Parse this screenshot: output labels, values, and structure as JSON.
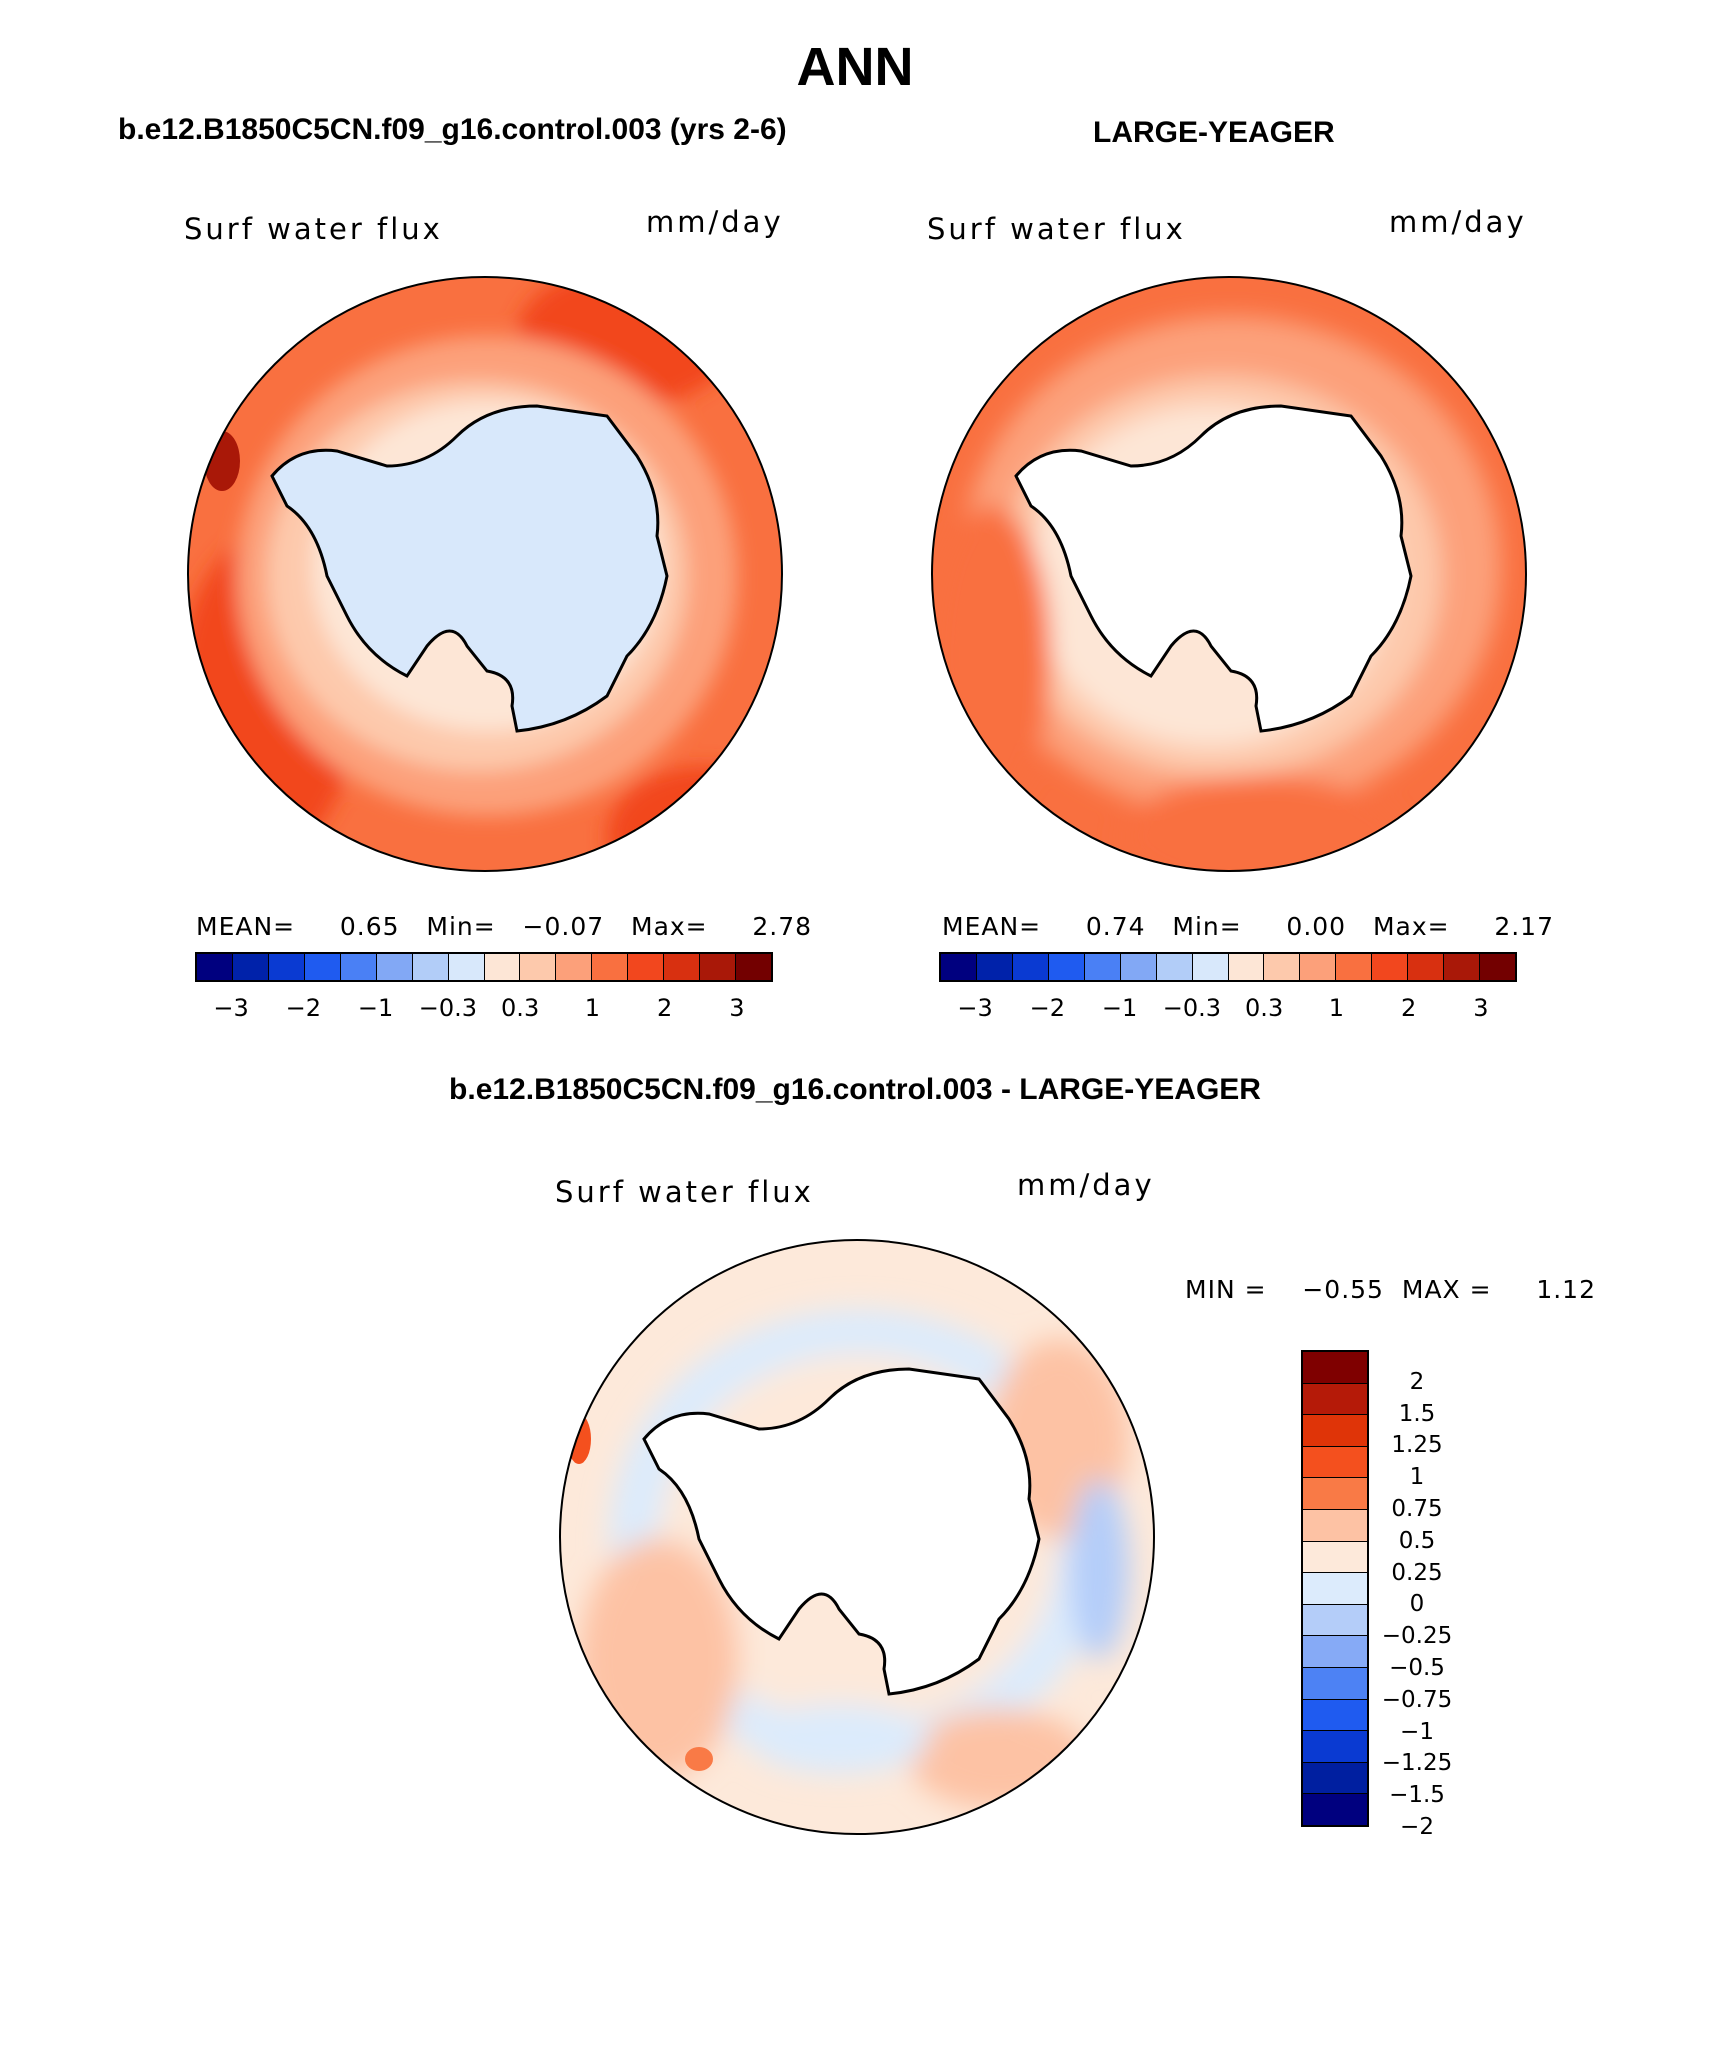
{
  "title": "ANN",
  "panels": [
    {
      "case": "b.e12.B1850C5CN.f09_g16.control.003 (yrs 2-6)",
      "variable": "Surf water flux",
      "units": "mm/day",
      "stats": {
        "mean_label": "MEAN=",
        "mean": "0.65",
        "min_label": "Min=",
        "min": "−0.07",
        "max_label": "Max=",
        "max": "2.78"
      }
    },
    {
      "case": "LARGE-YEAGER",
      "variable": "Surf water flux",
      "units": "mm/day",
      "stats": {
        "mean_label": "MEAN=",
        "mean": "0.74",
        "min_label": "Min=",
        "min": "0.00",
        "max_label": "Max=",
        "max": "2.17"
      }
    },
    {
      "case": "b.e12.B1850C5CN.f09_g16.control.003 - LARGE-YEAGER",
      "variable": "Surf water flux",
      "units": "mm/day",
      "stats": {
        "min_label": "MIN =",
        "min": "−0.55",
        "max_label": "MAX =",
        "max": "1.12"
      }
    }
  ],
  "colorbar_abs": {
    "colors": [
      "#00007f",
      "#0022aa",
      "#0a3ad2",
      "#1f5bf0",
      "#4a80f5",
      "#82a8f5",
      "#b2cdf8",
      "#d8e8fb",
      "#fde6d6",
      "#fdc9ac",
      "#fca07a",
      "#f97040",
      "#f2471e",
      "#d83010",
      "#a91808",
      "#730000"
    ],
    "labels": [
      "−3",
      "−2",
      "−1",
      "−0.3",
      "0.3",
      "1",
      "2",
      "3"
    ]
  },
  "colorbar_diff": {
    "colors_top_to_bottom": [
      "#7f0000",
      "#b51a08",
      "#df3408",
      "#f4501e",
      "#f97a46",
      "#fdc2a4",
      "#fde9da",
      "#dcebfc",
      "#b4cdf9",
      "#86aaf6",
      "#4d82f4",
      "#1f5bf0",
      "#0a3ad2",
      "#001fa0",
      "#00007f"
    ],
    "labels_top_to_bottom": [
      "2",
      "1.5",
      "1.25",
      "1",
      "0.75",
      "0.5",
      "0.25",
      "0",
      "−0.25",
      "−0.5",
      "−0.75",
      "−1",
      "−1.25",
      "−1.5",
      "−2"
    ]
  },
  "chart_data": [
    {
      "type": "heatmap",
      "title": "b.e12.B1850C5CN.f09_g16.control.003 (yrs 2-6)",
      "variable": "Surf water flux",
      "units": "mm/day",
      "projection": "south polar stereographic",
      "mean": 0.65,
      "min": -0.07,
      "max": 2.78,
      "levels": [
        -3,
        -2.5,
        -2,
        -1.5,
        -1,
        -0.6,
        -0.3,
        0,
        0.3,
        0.6,
        1,
        1.5,
        2,
        2.5,
        3
      ],
      "level_labels_shown": [
        -3,
        -2,
        -1,
        -0.3,
        0.3,
        1,
        2,
        3
      ]
    },
    {
      "type": "heatmap",
      "title": "LARGE-YEAGER",
      "variable": "Surf water flux",
      "units": "mm/day",
      "projection": "south polar stereographic",
      "mean": 0.74,
      "min": 0.0,
      "max": 2.17,
      "levels": [
        -3,
        -2.5,
        -2,
        -1.5,
        -1,
        -0.6,
        -0.3,
        0,
        0.3,
        0.6,
        1,
        1.5,
        2,
        2.5,
        3
      ],
      "level_labels_shown": [
        -3,
        -2,
        -1,
        -0.3,
        0.3,
        1,
        2,
        3
      ]
    },
    {
      "type": "heatmap",
      "title": "b.e12.B1850C5CN.f09_g16.control.003 - LARGE-YEAGER",
      "variable": "Surf water flux",
      "units": "mm/day",
      "projection": "south polar stereographic",
      "min": -0.55,
      "max": 1.12,
      "levels": [
        -2,
        -1.5,
        -1.25,
        -1,
        -0.75,
        -0.5,
        -0.25,
        0,
        0.25,
        0.5,
        0.75,
        1,
        1.25,
        1.5,
        2
      ]
    }
  ]
}
